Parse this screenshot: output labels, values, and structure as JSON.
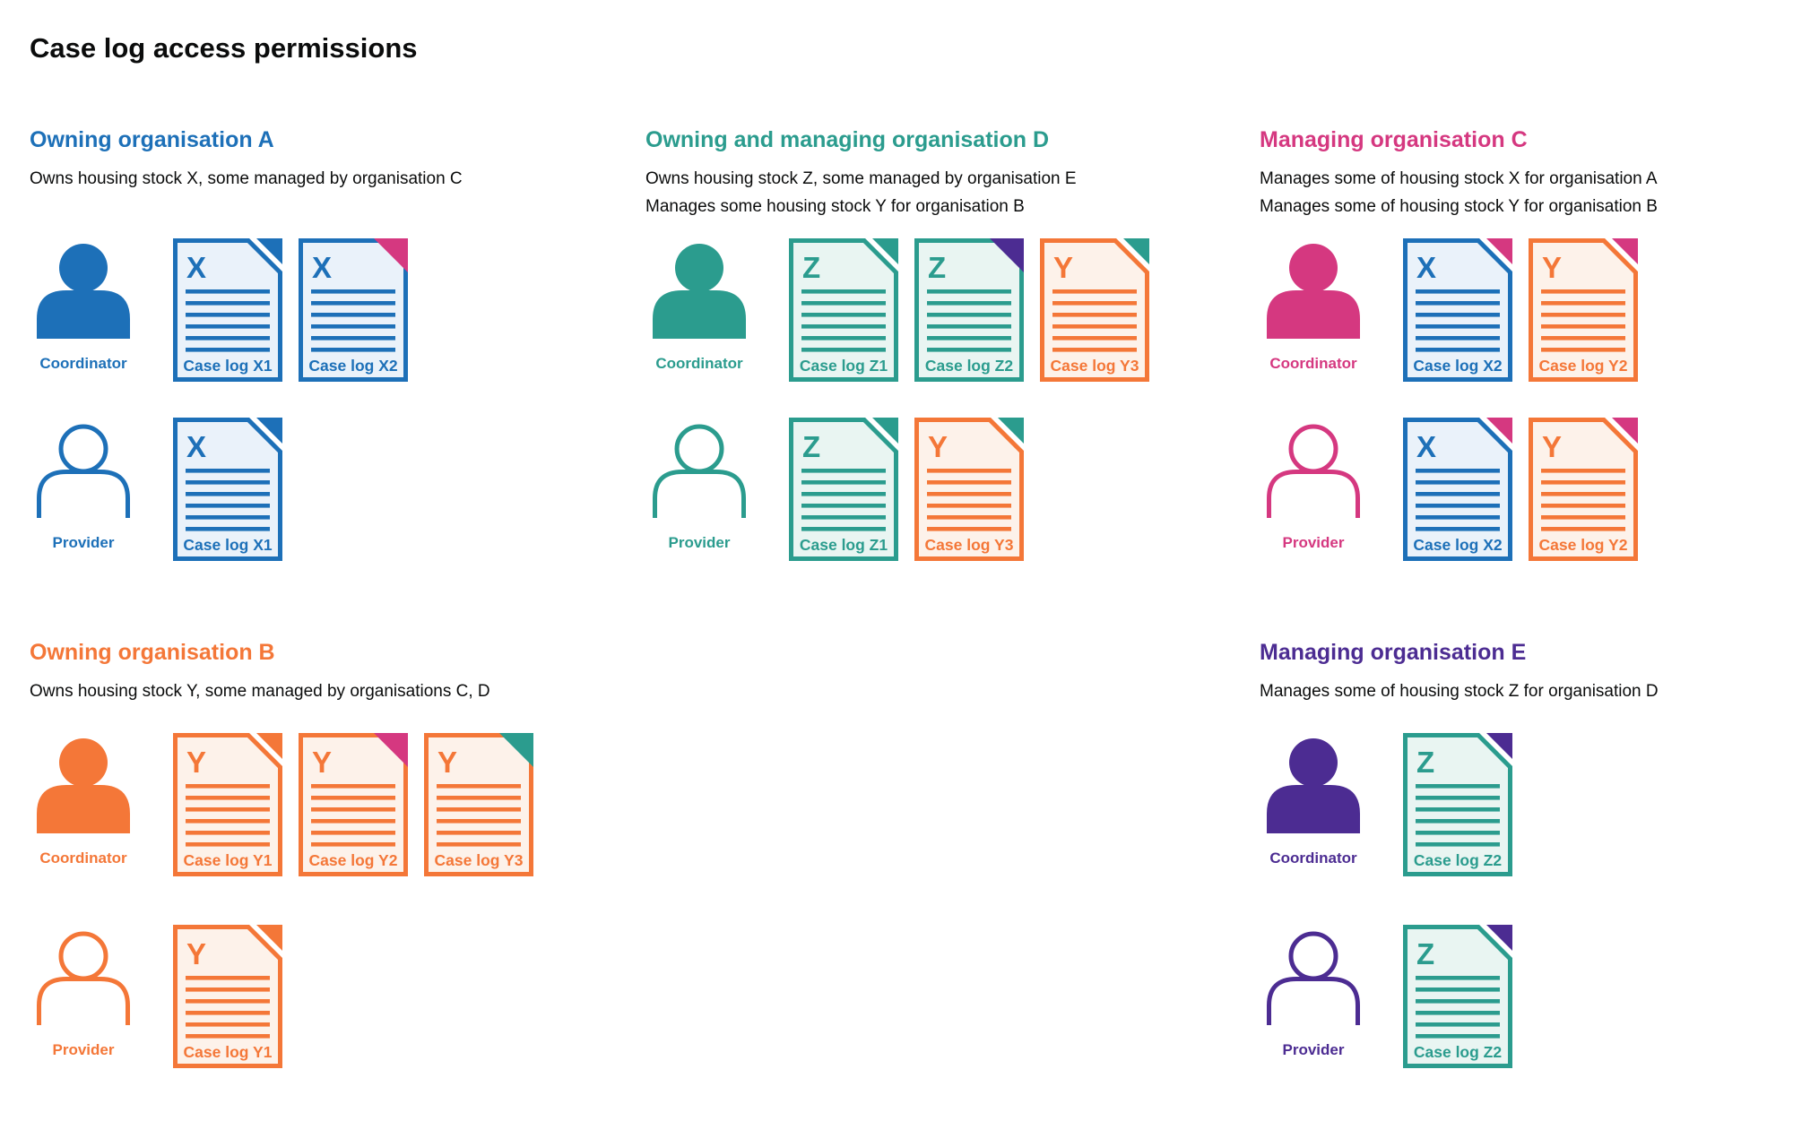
{
  "title": "Case log access permissions",
  "palette": {
    "A": "#1d70b8",
    "B": "#f47738",
    "C": "#d53880",
    "D": "#2b9c8e",
    "E": "#4c2c92"
  },
  "paper_tints": {
    "A": "#eaf2fa",
    "B": "#fdf2ea",
    "C": "#fbebf3",
    "D": "#e9f5f2",
    "E": "#eeebf6"
  },
  "text_color": "#0b0c0c",
  "icons": {
    "coordinator": "person-filled-icon",
    "provider": "person-outline-icon",
    "document": "case-log-document-icon",
    "fold": "folded-corner"
  },
  "sections": [
    {
      "id": "A",
      "org": "A",
      "heading": "Owning organisation A",
      "description_lines": [
        "Owns housing stock X, some managed by organisation C"
      ],
      "rows": [
        {
          "role": "Coordinator",
          "docs": [
            {
              "letter": "X",
              "label": "Case log X1",
              "paper": "A",
              "fold": "A",
              "fold_style": "dogear"
            },
            {
              "letter": "X",
              "label": "Case log X2",
              "paper": "A",
              "fold": "C",
              "fold_style": "corner"
            }
          ]
        },
        {
          "role": "Provider",
          "docs": [
            {
              "letter": "X",
              "label": "Case log X1",
              "paper": "A",
              "fold": "A",
              "fold_style": "dogear"
            }
          ]
        }
      ]
    },
    {
      "id": "D",
      "org": "D",
      "heading": "Owning and managing organisation D",
      "description_lines": [
        "Owns housing stock Z, some managed by organisation E",
        "Manages some housing stock Y for organisation B"
      ],
      "rows": [
        {
          "role": "Coordinator",
          "docs": [
            {
              "letter": "Z",
              "label": "Case log Z1",
              "paper": "D",
              "fold": "D",
              "fold_style": "dogear"
            },
            {
              "letter": "Z",
              "label": "Case log Z2",
              "paper": "D",
              "fold": "E",
              "fold_style": "corner"
            },
            {
              "letter": "Y",
              "label": "Case log Y3",
              "paper": "B",
              "fold": "D",
              "fold_style": "dogear"
            }
          ]
        },
        {
          "role": "Provider",
          "docs": [
            {
              "letter": "Z",
              "label": "Case log Z1",
              "paper": "D",
              "fold": "D",
              "fold_style": "dogear"
            },
            {
              "letter": "Y",
              "label": "Case log Y3",
              "paper": "B",
              "fold": "D",
              "fold_style": "dogear"
            }
          ]
        }
      ]
    },
    {
      "id": "C",
      "org": "C",
      "heading": "Managing organisation C",
      "description_lines": [
        "Manages some of housing stock X for organisation A",
        "Manages some of housing stock Y for organisation B"
      ],
      "rows": [
        {
          "role": "Coordinator",
          "docs": [
            {
              "letter": "X",
              "label": "Case log X2",
              "paper": "A",
              "fold": "C",
              "fold_style": "dogear"
            },
            {
              "letter": "Y",
              "label": "Case log Y2",
              "paper": "B",
              "fold": "C",
              "fold_style": "dogear"
            }
          ]
        },
        {
          "role": "Provider",
          "docs": [
            {
              "letter": "X",
              "label": "Case log X2",
              "paper": "A",
              "fold": "C",
              "fold_style": "dogear"
            },
            {
              "letter": "Y",
              "label": "Case log Y2",
              "paper": "B",
              "fold": "C",
              "fold_style": "dogear"
            }
          ]
        }
      ]
    },
    {
      "id": "B",
      "org": "B",
      "heading": "Owning organisation B",
      "description_lines": [
        "Owns housing stock Y, some managed by organisations C, D"
      ],
      "rows": [
        {
          "role": "Coordinator",
          "docs": [
            {
              "letter": "Y",
              "label": "Case log Y1",
              "paper": "B",
              "fold": "B",
              "fold_style": "dogear"
            },
            {
              "letter": "Y",
              "label": "Case log Y2",
              "paper": "B",
              "fold": "C",
              "fold_style": "corner"
            },
            {
              "letter": "Y",
              "label": "Case log Y3",
              "paper": "B",
              "fold": "D",
              "fold_style": "corner"
            }
          ]
        },
        {
          "role": "Provider",
          "docs": [
            {
              "letter": "Y",
              "label": "Case log Y1",
              "paper": "B",
              "fold": "B",
              "fold_style": "dogear"
            }
          ]
        }
      ]
    },
    {
      "id": "E",
      "org": "E",
      "heading": "Managing organisation E",
      "description_lines": [
        "Manages some of housing stock Z for organisation D"
      ],
      "rows": [
        {
          "role": "Coordinator",
          "docs": [
            {
              "letter": "Z",
              "label": "Case log Z2",
              "paper": "D",
              "fold": "E",
              "fold_style": "dogear"
            }
          ]
        },
        {
          "role": "Provider",
          "docs": [
            {
              "letter": "Z",
              "label": "Case log Z2",
              "paper": "D",
              "fold": "E",
              "fold_style": "dogear"
            }
          ]
        }
      ]
    }
  ]
}
